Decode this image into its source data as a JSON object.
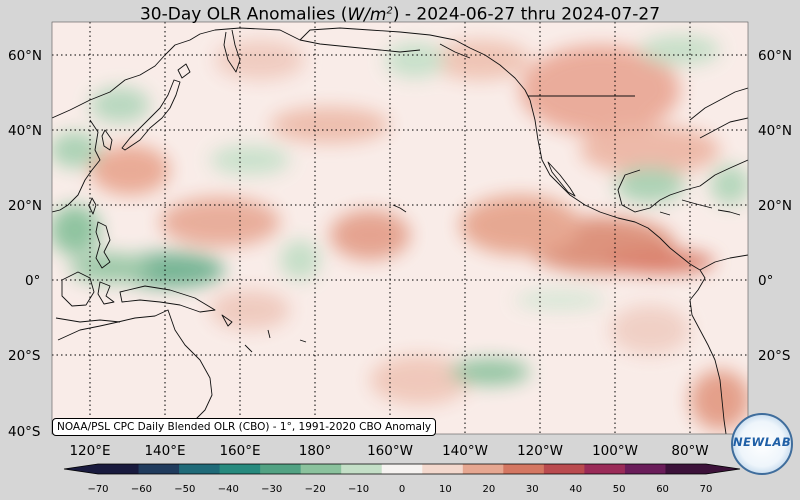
{
  "title": {
    "prefix": "30-Day OLR Anomalies (",
    "units_base": "W/m",
    "units_exp": "2",
    "suffix": ") - 2024-06-27 thru 2024-07-27"
  },
  "lat_labels_left": [
    "60°N",
    "40°N",
    "20°N",
    "0°",
    "20°S",
    "40°S"
  ],
  "lat_labels_right": [
    "60°N",
    "40°N",
    "20°N",
    "0°",
    "20°S"
  ],
  "lon_labels": [
    "120°E",
    "140°E",
    "160°E",
    "180°",
    "160°W",
    "140°W",
    "120°W",
    "100°W",
    "80°W"
  ],
  "source_note": "NOAA/PSL CPC Daily Blended OLR (CBO) - 1°, 1991-2020 CBO Anomaly",
  "colorbar": {
    "ticks": [
      "−70",
      "−60",
      "−50",
      "−40",
      "−30",
      "−20",
      "−10",
      "0",
      "10",
      "20",
      "30",
      "40",
      "50",
      "60",
      "70"
    ],
    "colors": [
      "#191a3e",
      "#203b5d",
      "#1f6a78",
      "#278a7e",
      "#52a283",
      "#8bc29d",
      "#c4dfc7",
      "#f6f3f1",
      "#f3d8cd",
      "#e6a791",
      "#d47762",
      "#ba4b4f",
      "#9a2b58",
      "#6a1d5a",
      "#3c123a"
    ]
  },
  "logo": {
    "text": "NEWLAB"
  },
  "colors": {
    "ocean_base": "#f9ece8",
    "land_outline": "#111111",
    "grid": "#000000"
  }
}
